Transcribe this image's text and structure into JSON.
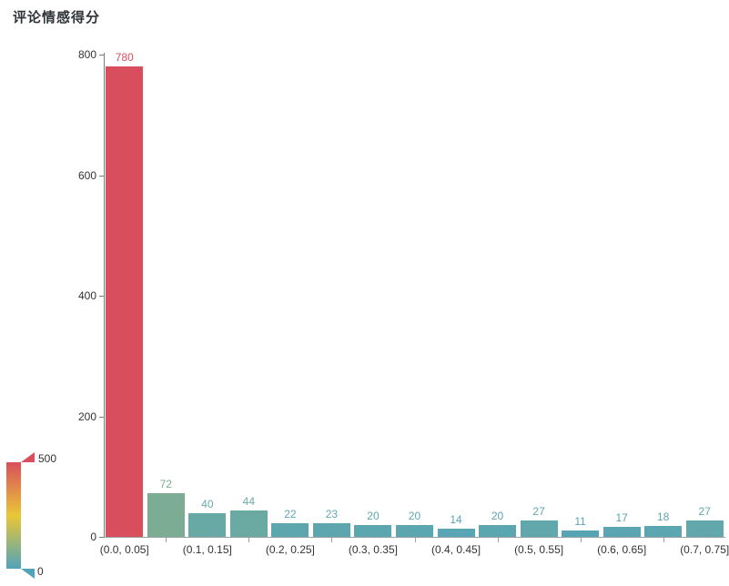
{
  "chart_data": {
    "type": "bar",
    "title": "评论情感得分",
    "categories": [
      "(0.0, 0.05]",
      "",
      "(0.1, 0.15]",
      "",
      "(0.2, 0.25]",
      "",
      "(0.3, 0.35]",
      "",
      "(0.4, 0.45]",
      "",
      "(0.5, 0.55]",
      "",
      "(0.6, 0.65]",
      "",
      "(0.7, 0.75]"
    ],
    "values": [
      780,
      72,
      40,
      44,
      22,
      23,
      20,
      20,
      14,
      20,
      27,
      11,
      17,
      18,
      27
    ],
    "ylim": [
      0,
      800
    ],
    "y_ticks": [
      "0",
      "200",
      "400",
      "600",
      "800"
    ],
    "grid": false,
    "xlabel": "",
    "ylabel": "",
    "legend_position": "bottom-left",
    "visualmap": {
      "min": 0,
      "max": 500,
      "min_label": "0",
      "max_label": "500",
      "colors_low_to_high": [
        "#50a3ba",
        "#eac736",
        "#d94e5d"
      ]
    },
    "colors": {
      "axis_text": "#333333",
      "y_axis_line": "#777c80",
      "x_axis_line": "#9aa1a5",
      "title_text": "#2f3439"
    }
  }
}
